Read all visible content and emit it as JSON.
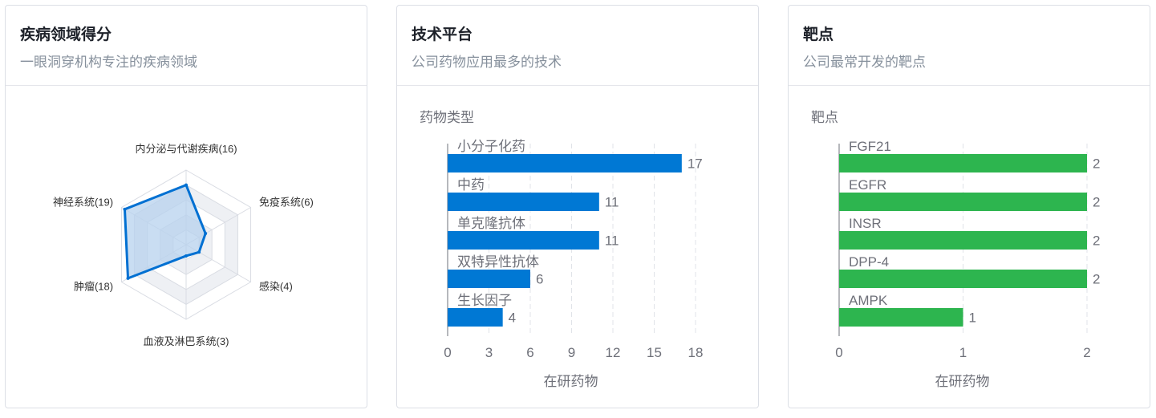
{
  "cards": [
    {
      "title": "疾病领域得分",
      "subtitle": "一眼洞穿机构专注的疾病领域"
    },
    {
      "title": "技术平台",
      "subtitle": "公司药物应用最多的技术"
    },
    {
      "title": "靶点",
      "subtitle": "公司最常开发的靶点"
    }
  ],
  "chart_data": [
    {
      "type": "radar",
      "indicators": [
        "内分泌与代谢疾病(16)",
        "免疫系统(6)",
        "感染(4)",
        "血液及淋巴系统(3)",
        "肿瘤(18)",
        "神经系统(19)"
      ],
      "values": [
        16,
        6,
        4,
        3,
        18,
        19
      ],
      "max": 20,
      "colors": {
        "line": "#0070d2",
        "fill": "#b7d1ee"
      }
    },
    {
      "type": "bar",
      "orientation": "horizontal",
      "ylabel": "药物类型",
      "xlabel": "在研药物",
      "categories": [
        "小分子化药",
        "中药",
        "单克隆抗体",
        "双特异性抗体",
        "生长因子"
      ],
      "values": [
        17,
        11,
        11,
        6,
        4
      ],
      "xlim": [
        0,
        18
      ],
      "xticks": [
        0,
        3,
        6,
        9,
        12,
        15,
        18
      ],
      "color": "#0078d4"
    },
    {
      "type": "bar",
      "orientation": "horizontal",
      "ylabel": "靶点",
      "xlabel": "在研药物",
      "categories": [
        "FGF21",
        "EGFR",
        "INSR",
        "DPP-4",
        "AMPK"
      ],
      "values": [
        2,
        2,
        2,
        2,
        1
      ],
      "xlim": [
        0,
        2
      ],
      "xticks": [
        0,
        1,
        2
      ],
      "color": "#2db54f"
    }
  ]
}
